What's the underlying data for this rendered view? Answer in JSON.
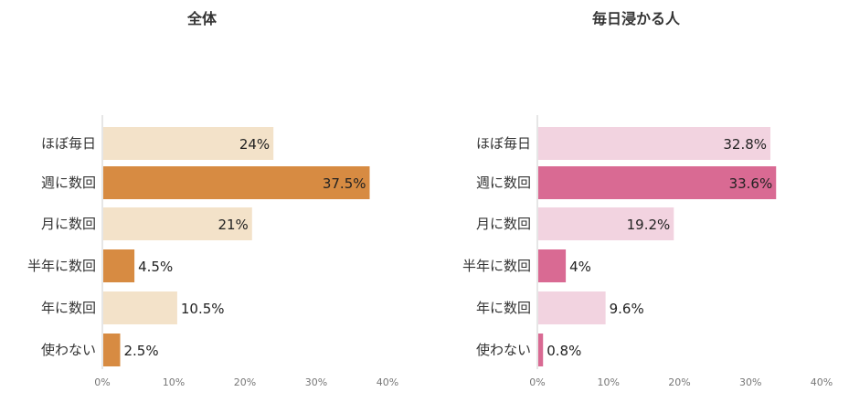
{
  "chart_data": [
    {
      "type": "bar",
      "orientation": "horizontal",
      "title": "全体",
      "categories": [
        "ほぼ毎日",
        "週に数回",
        "月に数回",
        "半年に数回",
        "年に数回",
        "使わない"
      ],
      "values": [
        24,
        37.5,
        21,
        4.5,
        10.5,
        2.5
      ],
      "value_labels": [
        "24%",
        "37.5%",
        "21%",
        "4.5%",
        "10.5%",
        "2.5%"
      ],
      "xlim": [
        0,
        40
      ],
      "ticks": [
        0,
        10,
        20,
        30,
        40
      ],
      "tick_labels": [
        "0%",
        "10%",
        "20%",
        "30%",
        "40%"
      ],
      "grid": false,
      "colors": {
        "light": "#F3E2C9",
        "dark": "#D78B42"
      },
      "highlight": [
        false,
        true,
        false,
        true,
        false,
        true
      ]
    },
    {
      "type": "bar",
      "orientation": "horizontal",
      "title": "毎日浸かる人",
      "categories": [
        "ほぼ毎日",
        "週に数回",
        "月に数回",
        "半年に数回",
        "年に数回",
        "使わない"
      ],
      "values": [
        32.8,
        33.6,
        19.2,
        4,
        9.6,
        0.8
      ],
      "value_labels": [
        "32.8%",
        "33.6%",
        "19.2%",
        "4%",
        "9.6%",
        "0.8%"
      ],
      "xlim": [
        0,
        40
      ],
      "ticks": [
        0,
        10,
        20,
        30,
        40
      ],
      "tick_labels": [
        "0%",
        "10%",
        "20%",
        "30%",
        "40%"
      ],
      "grid": false,
      "colors": {
        "light": "#F2D3E0",
        "dark": "#D96A93"
      },
      "highlight": [
        false,
        true,
        false,
        true,
        false,
        true
      ]
    }
  ]
}
